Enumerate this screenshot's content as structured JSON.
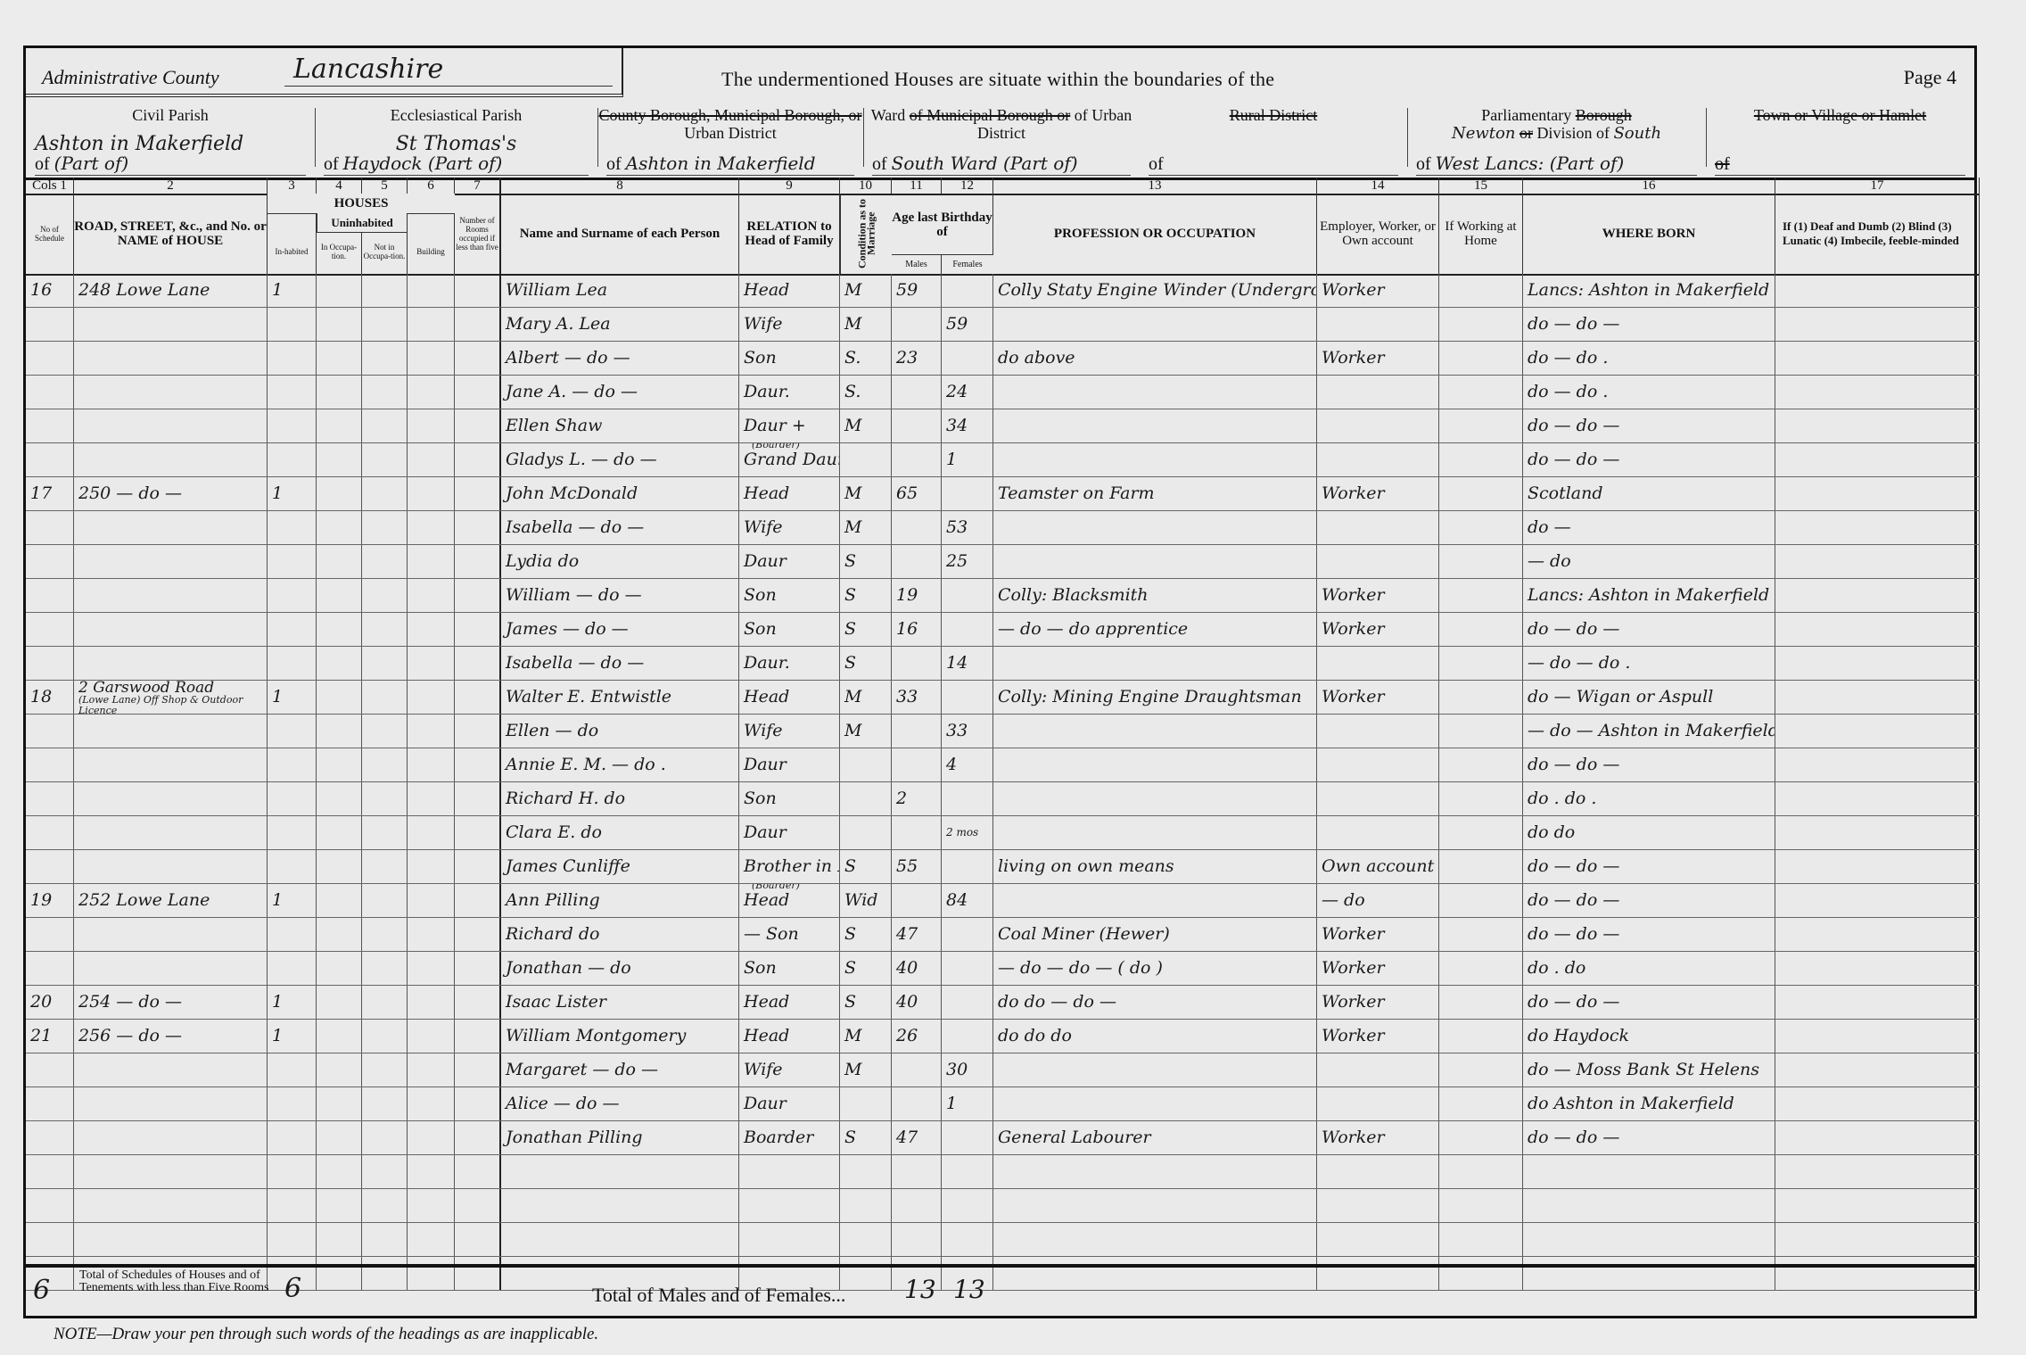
{
  "header": {
    "county_label": "Administrative County",
    "county_value": "Lancashire",
    "undermentioned": "The undermentioned Houses are situate within the boundaries of the",
    "page": "Page 4"
  },
  "parishes": {
    "civil": {
      "label": "Civil Parish",
      "value": "Ashton in Makerfield",
      "of": "of",
      "value2": "(Part of)"
    },
    "ecclesiastical": {
      "label": "Ecclesiastical Parish",
      "value": "St Thomas's",
      "of": "of",
      "value2": "Haydock (Part of)"
    },
    "county_borough": {
      "struck": "County Borough, Municipal Borough, or",
      "label": "Urban District",
      "of": "of",
      "value": "Ashton in Makerfield"
    },
    "ward": {
      "label": "Ward",
      "struck": "of Municipal Borough or",
      "label2": "of Urban District",
      "of": "of",
      "value": "South Ward (Part of)"
    },
    "rural": {
      "struck": "Rural District",
      "of": "of",
      "value": ""
    },
    "parliamentary": {
      "label": "Parliamentary",
      "struck": "Borough",
      "value": "Newton",
      "struck2": "or",
      "label2": "Division of",
      "value_a": "South",
      "of": "of",
      "value2": "West Lancs: (Part of)"
    },
    "town": {
      "struck": "Town or Village or Hamlet",
      "of": "of",
      "value": ""
    }
  },
  "columns": {
    "numbers": [
      "Cols 1",
      "2",
      "3",
      "4",
      "5",
      "6",
      "7",
      "8",
      "9",
      "10",
      "11",
      "12",
      "13",
      "14",
      "15",
      "16",
      "17"
    ],
    "schedule": "No of Schedule",
    "road": "ROAD, STREET, &c., and No. or NAME of HOUSE",
    "houses": "HOUSES",
    "inhabited": "In-habited",
    "uninhabited": "Uninhabited",
    "in_occupation": "In Occupa-tion.",
    "not_in_occupation": "Not in Occupa-tion.",
    "building": "Building",
    "rooms": "Number of Rooms occupied if less than five",
    "name": "Name and Surname of each Person",
    "relation": "RELATION to Head of Family",
    "condition": "Condition as to Marriage",
    "age": "Age last Birthday of",
    "males": "Males",
    "females": "Females",
    "occupation": "PROFESSION OR OCCUPATION",
    "employment": "Employer, Worker, or Own account",
    "at_home": "If Working at Home",
    "born": "WHERE BORN",
    "infirmity": "If (1) Deaf and Dumb (2) Blind (3) Lunatic (4) Imbecile, feeble-minded"
  },
  "persons": [
    {
      "schedule": "16",
      "address": "248 Lowe Lane",
      "inhabited": "1",
      "name": "William Lea",
      "relation": "Head",
      "condition": "M",
      "age_m": "59",
      "age_f": "",
      "occupation": "Colly Staty Engine Winder (Underground)",
      "employment": "Worker",
      "born": "Lancs: Ashton in Makerfield"
    },
    {
      "schedule": "",
      "address": "",
      "inhabited": "",
      "name": "Mary A. Lea",
      "relation": "Wife",
      "condition": "M",
      "age_m": "",
      "age_f": "59",
      "occupation": "",
      "employment": "",
      "born": "do — do —"
    },
    {
      "schedule": "",
      "address": "",
      "inhabited": "",
      "name": "Albert — do —",
      "relation": "Son",
      "condition": "S.",
      "age_m": "23",
      "age_f": "",
      "occupation": "do above",
      "employment": "Worker",
      "born": "do — do ."
    },
    {
      "schedule": "",
      "address": "",
      "inhabited": "",
      "name": "Jane A. — do —",
      "relation": "Daur.",
      "condition": "S.",
      "age_m": "",
      "age_f": "24",
      "occupation": "",
      "employment": "",
      "born": "do — do ."
    },
    {
      "schedule": "",
      "address": "",
      "inhabited": "",
      "name": "Ellen Shaw",
      "relation": "Daur +",
      "condition": "M",
      "age_m": "",
      "age_f": "34",
      "occupation": "",
      "employment": "",
      "born": "do — do —"
    },
    {
      "schedule": "",
      "address": "",
      "inhabited": "",
      "name": "Gladys L. — do —",
      "relation": "Grand Daur",
      "relation_note": "(Boarder)",
      "condition": "",
      "age_m": "",
      "age_f": "1",
      "occupation": "",
      "employment": "",
      "born": "do — do —"
    },
    {
      "schedule": "17",
      "address": "250 — do —",
      "inhabited": "1",
      "name": "John McDonald",
      "relation": "Head",
      "condition": "M",
      "age_m": "65",
      "age_f": "",
      "occupation": "Teamster on Farm",
      "employment": "Worker",
      "born": "Scotland"
    },
    {
      "schedule": "",
      "address": "",
      "inhabited": "",
      "name": "Isabella — do —",
      "relation": "Wife",
      "condition": "M",
      "age_m": "",
      "age_f": "53",
      "occupation": "",
      "employment": "",
      "born": "do —"
    },
    {
      "schedule": "",
      "address": "",
      "inhabited": "",
      "name": "Lydia do",
      "relation": "Daur",
      "condition": "S",
      "age_m": "",
      "age_f": "25",
      "occupation": "",
      "employment": "",
      "born": "— do"
    },
    {
      "schedule": "",
      "address": "",
      "inhabited": "",
      "name": "William — do —",
      "relation": "Son",
      "condition": "S",
      "age_m": "19",
      "age_f": "",
      "occupation": "Colly: Blacksmith",
      "employment": "Worker",
      "born": "Lancs: Ashton in Makerfield"
    },
    {
      "schedule": "",
      "address": "",
      "inhabited": "",
      "name": "James — do —",
      "relation": "Son",
      "condition": "S",
      "age_m": "16",
      "age_f": "",
      "occupation": "— do — do apprentice",
      "employment": "Worker",
      "born": "do — do —"
    },
    {
      "schedule": "",
      "address": "",
      "inhabited": "",
      "name": "Isabella — do —",
      "relation": "Daur.",
      "condition": "S",
      "age_m": "",
      "age_f": "14",
      "occupation": "",
      "employment": "",
      "born": "— do — do ."
    },
    {
      "schedule": "18",
      "address": "2 Garswood Road",
      "address_note": "(Lowe Lane) Off Shop & Outdoor Licence",
      "inhabited": "1",
      "name": "Walter E. Entwistle",
      "relation": "Head",
      "condition": "M",
      "age_m": "33",
      "age_f": "",
      "occupation": "Colly: Mining Engine Draughtsman",
      "employment": "Worker",
      "born": "do — Wigan or Aspull"
    },
    {
      "schedule": "",
      "address": "",
      "inhabited": "",
      "name": "Ellen — do",
      "relation": "Wife",
      "condition": "M",
      "age_m": "",
      "age_f": "33",
      "occupation": "",
      "employment": "",
      "born": "— do — Ashton in Makerfield"
    },
    {
      "schedule": "",
      "address": "",
      "inhabited": "",
      "name": "Annie E. M. — do .",
      "relation": "Daur",
      "condition": "",
      "age_m": "",
      "age_f": "4",
      "occupation": "",
      "employment": "",
      "born": "do — do —"
    },
    {
      "schedule": "",
      "address": "",
      "inhabited": "",
      "name": "Richard H. do",
      "relation": "Son",
      "condition": "",
      "age_m": "2",
      "age_f": "",
      "occupation": "",
      "employment": "",
      "born": "do . do ."
    },
    {
      "schedule": "",
      "address": "",
      "inhabited": "",
      "name": "Clara E. do",
      "relation": "Daur",
      "condition": "",
      "age_m": "",
      "age_f": "2 mos",
      "occupation": "",
      "employment": "",
      "born": "do do"
    },
    {
      "schedule": "",
      "address": "",
      "inhabited": "",
      "name": "James Cunliffe",
      "relation": "Brother in Law",
      "condition": "S",
      "age_m": "55",
      "age_f": "",
      "occupation": "living on own means",
      "employment": "Own account",
      "born": "do — do —"
    },
    {
      "schedule": "19",
      "address": "252 Lowe Lane",
      "inhabited": "1",
      "name": "Ann Pilling",
      "relation": "Head",
      "relation_note": "(Boarder)",
      "condition": "Wid",
      "age_m": "",
      "age_f": "84",
      "occupation": "",
      "employment": "— do",
      "born": "do — do —"
    },
    {
      "schedule": "",
      "address": "",
      "inhabited": "",
      "name": "Richard do",
      "relation": "— Son",
      "condition": "S",
      "age_m": "47",
      "age_f": "",
      "occupation": "Coal Miner (Hewer)",
      "employment": "Worker",
      "born": "do — do —"
    },
    {
      "schedule": "",
      "address": "",
      "inhabited": "",
      "name": "Jonathan — do",
      "relation": "Son",
      "condition": "S",
      "age_m": "40",
      "age_f": "",
      "occupation": "— do — do — ( do )",
      "employment": "Worker",
      "born": "do . do"
    },
    {
      "schedule": "20",
      "address": "254 — do —",
      "inhabited": "1",
      "name": "Isaac Lister",
      "relation": "Head",
      "condition": "S",
      "age_m": "40",
      "age_f": "",
      "occupation": "do do — do —",
      "employment": "Worker",
      "born": "do — do —"
    },
    {
      "schedule": "21",
      "address": "256 — do —",
      "inhabited": "1",
      "name": "William Montgomery",
      "relation": "Head",
      "condition": "M",
      "age_m": "26",
      "age_f": "",
      "occupation": "do do do",
      "employment": "Worker",
      "born": "do Haydock"
    },
    {
      "schedule": "",
      "address": "",
      "inhabited": "",
      "name": "Margaret — do —",
      "relation": "Wife",
      "condition": "M",
      "age_m": "",
      "age_f": "30",
      "occupation": "",
      "employment": "",
      "born": "do — Moss Bank St Helens"
    },
    {
      "schedule": "",
      "address": "",
      "inhabited": "",
      "name": "Alice — do —",
      "relation": "Daur",
      "condition": "",
      "age_m": "",
      "age_f": "1",
      "occupation": "",
      "employment": "",
      "born": "do Ashton in Makerfield"
    },
    {
      "schedule": "",
      "address": "",
      "inhabited": "",
      "name": "Jonathan Pilling",
      "relation": "Boarder",
      "condition": "S",
      "age_m": "47",
      "age_f": "",
      "occupation": "General Labourer",
      "employment": "Worker",
      "born": "do — do —"
    }
  ],
  "totals": {
    "schedules": "6",
    "schedules_label": "Total of Schedules of Houses and of Tenements with less than Five Rooms",
    "houses": "6",
    "males_females_label": "Total of Males and of Females...",
    "males": "13",
    "females": "13"
  },
  "note": "NOTE—Draw your pen through such words of the headings as are inapplicable."
}
